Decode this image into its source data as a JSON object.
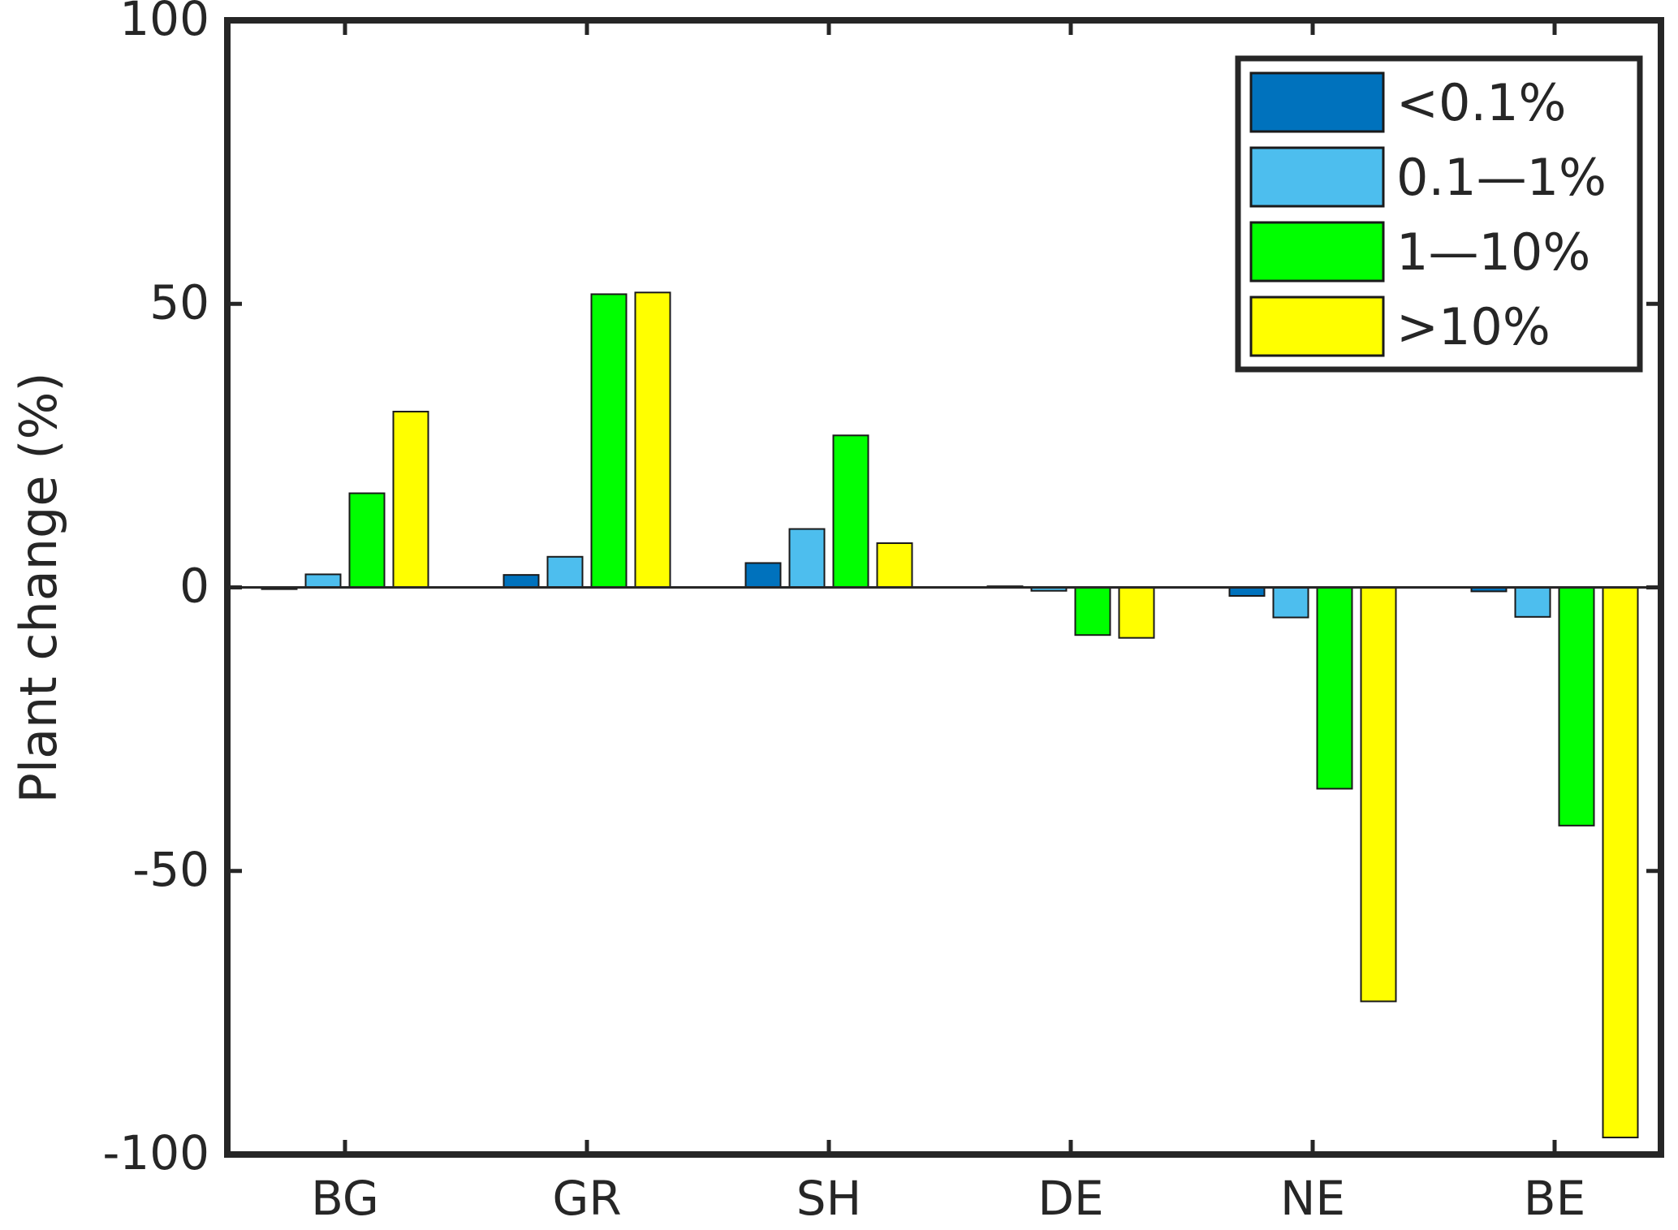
{
  "chart_data": {
    "type": "bar",
    "title": "",
    "xlabel": "",
    "ylabel": "Plant change (%)",
    "ylim": [
      -100,
      100
    ],
    "yticks": [
      "-100",
      "-50",
      "0",
      "50",
      "100"
    ],
    "ytick_values": [
      -100,
      -50,
      0,
      50,
      100
    ],
    "categories": [
      "BG",
      "GR",
      "SH",
      "DE",
      "NE",
      "BE"
    ],
    "series": [
      {
        "name": "<0.1%",
        "color": "#0072BD",
        "values": [
          -0.3,
          2.2,
          4.3,
          0.2,
          -1.5,
          -0.7
        ]
      },
      {
        "name": "0.1—1%",
        "color": "#4DBEEE",
        "values": [
          2.3,
          5.4,
          10.3,
          -0.6,
          -5.3,
          -5.2
        ]
      },
      {
        "name": "1—10%",
        "color": "#00FF00",
        "values": [
          16.6,
          51.7,
          26.8,
          -8.4,
          -35.5,
          -42.0
        ]
      },
      {
        "name": ">10%",
        "color": "#FFFF00",
        "values": [
          31.0,
          52.0,
          7.8,
          -8.9,
          -73.0,
          -97.0
        ]
      }
    ],
    "grid": false,
    "legend_position": "top-right"
  }
}
